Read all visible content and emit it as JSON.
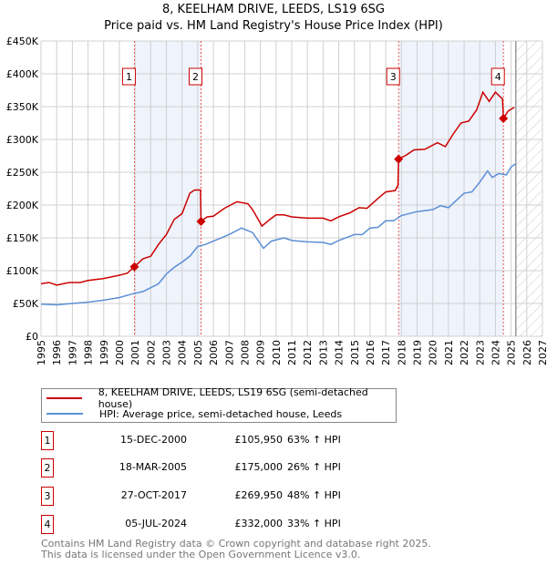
{
  "title": "8, KEELHAM DRIVE, LEEDS, LS19 6SG",
  "subtitle": "Price paid vs. HM Land Registry's House Price Index (HPI)",
  "colors": {
    "property": "#cc0000",
    "hpi": "#5b8fd4",
    "shade": "#eef3fc"
  },
  "chart_data": {
    "type": "line",
    "xlim": [
      1995,
      2027
    ],
    "ylim": [
      0,
      450000
    ],
    "x_ticks": [
      "1995",
      "1996",
      "1997",
      "1998",
      "1999",
      "2000",
      "2001",
      "2002",
      "2003",
      "2004",
      "2005",
      "2006",
      "2007",
      "2008",
      "2009",
      "2010",
      "2011",
      "2012",
      "2013",
      "2014",
      "2015",
      "2016",
      "2017",
      "2018",
      "2019",
      "2020",
      "2021",
      "2022",
      "2023",
      "2024",
      "2025",
      "2026",
      "2027"
    ],
    "y_ticks": [
      {
        "v": 0,
        "label": "£0"
      },
      {
        "v": 50000,
        "label": "£50K"
      },
      {
        "v": 100000,
        "label": "£100K"
      },
      {
        "v": 150000,
        "label": "£150K"
      },
      {
        "v": 200000,
        "label": "£200K"
      },
      {
        "v": 250000,
        "label": "£250K"
      },
      {
        "v": 300000,
        "label": "£300K"
      },
      {
        "v": 350000,
        "label": "£350K"
      },
      {
        "v": 400000,
        "label": "£400K"
      },
      {
        "v": 450000,
        "label": "£450K"
      }
    ],
    "forecast_start": 2025.3,
    "shaded_ranges": [
      [
        2000.96,
        2005.21
      ],
      [
        2017.82,
        2024.51
      ]
    ],
    "series": [
      {
        "name": "8, KEELHAM DRIVE, LEEDS, LS19 6SG (semi-detached house)",
        "color": "#cc0000",
        "x": [
          1995,
          1995.5,
          1996,
          1996.8,
          1997.5,
          1998,
          1999,
          2000,
          2000.5,
          2000.96,
          2001.5,
          2002,
          2002.5,
          2003,
          2003.5,
          2004,
          2004.5,
          2004.8,
          2005.18,
          2005.21,
          2005.6,
          2006,
          2006.7,
          2007.5,
          2008.2,
          2008.5,
          2009.1,
          2009.6,
          2010,
          2010.5,
          2011,
          2012,
          2013,
          2013.5,
          2014,
          2014.7,
          2015.3,
          2015.8,
          2016.5,
          2017,
          2017.6,
          2017.78,
          2017.82,
          2018.3,
          2018.8,
          2019.5,
          2020.3,
          2020.8,
          2021.3,
          2021.8,
          2022.3,
          2022.8,
          2023.2,
          2023.6,
          2024,
          2024.3,
          2024.45,
          2024.51,
          2024.8,
          2025.2
        ],
        "y": [
          80000,
          82000,
          78000,
          82000,
          82000,
          85000,
          88000,
          93000,
          96000,
          105950,
          118000,
          122000,
          140000,
          155000,
          178000,
          187000,
          218000,
          223000,
          223000,
          175000,
          182000,
          183000,
          195000,
          205000,
          202000,
          193000,
          168000,
          178000,
          185000,
          185000,
          182000,
          180000,
          180000,
          176000,
          182000,
          188000,
          196000,
          195000,
          210000,
          220000,
          222000,
          230000,
          269950,
          276000,
          284000,
          285000,
          295000,
          289000,
          308000,
          325000,
          328000,
          345000,
          372000,
          358000,
          372000,
          365000,
          362000,
          332000,
          343000,
          349000
        ]
      },
      {
        "name": "HPI: Average price, semi-detached house, Leeds",
        "color": "#5b8fd4",
        "x": [
          1995,
          1996,
          1997,
          1998,
          1999,
          2000,
          2000.9,
          2001.5,
          2002,
          2002.5,
          2003,
          2003.5,
          2004,
          2004.5,
          2005,
          2005.5,
          2006,
          2007,
          2007.8,
          2008.5,
          2009.2,
          2009.7,
          2010.5,
          2011,
          2012,
          2013,
          2013.5,
          2014,
          2015,
          2015.5,
          2016,
          2016.5,
          2017,
          2017.5,
          2018,
          2019,
          2020,
          2020.5,
          2021,
          2021.5,
          2022,
          2022.5,
          2023,
          2023.5,
          2023.8,
          2024.2,
          2024.7,
          2025,
          2025.3
        ],
        "y": [
          49000,
          48000,
          50000,
          52000,
          55000,
          59000,
          65000,
          68000,
          74000,
          80000,
          95000,
          105000,
          113000,
          122000,
          137000,
          140000,
          145000,
          155000,
          165000,
          158000,
          134000,
          145000,
          150000,
          146000,
          144000,
          143000,
          140000,
          146000,
          155000,
          155000,
          165000,
          166000,
          176000,
          176000,
          184000,
          190000,
          193000,
          199000,
          196000,
          207000,
          218000,
          220000,
          235000,
          252000,
          242000,
          248000,
          246000,
          258000,
          263000
        ]
      }
    ],
    "markers": [
      {
        "label": "1",
        "x": 2000.96,
        "y": 105950
      },
      {
        "label": "2",
        "x": 2005.21,
        "y": 175000
      },
      {
        "label": "3",
        "x": 2017.82,
        "y": 269950
      },
      {
        "label": "4",
        "x": 2024.51,
        "y": 332000
      }
    ]
  },
  "legend": {
    "property": "8, KEELHAM DRIVE, LEEDS, LS19 6SG (semi-detached house)",
    "hpi": "HPI: Average price, semi-detached house, Leeds"
  },
  "transactions": [
    {
      "num": "1",
      "date": "15-DEC-2000",
      "price": "£105,950",
      "hpi": "63% ↑ HPI"
    },
    {
      "num": "2",
      "date": "18-MAR-2005",
      "price": "£175,000",
      "hpi": "26% ↑ HPI"
    },
    {
      "num": "3",
      "date": "27-OCT-2017",
      "price": "£269,950",
      "hpi": "48% ↑ HPI"
    },
    {
      "num": "4",
      "date": "05-JUL-2024",
      "price": "£332,000",
      "hpi": "33% ↑ HPI"
    }
  ],
  "footer": [
    "Contains HM Land Registry data © Crown copyright and database right 2025.",
    "This data is licensed under the Open Government Licence v3.0."
  ]
}
